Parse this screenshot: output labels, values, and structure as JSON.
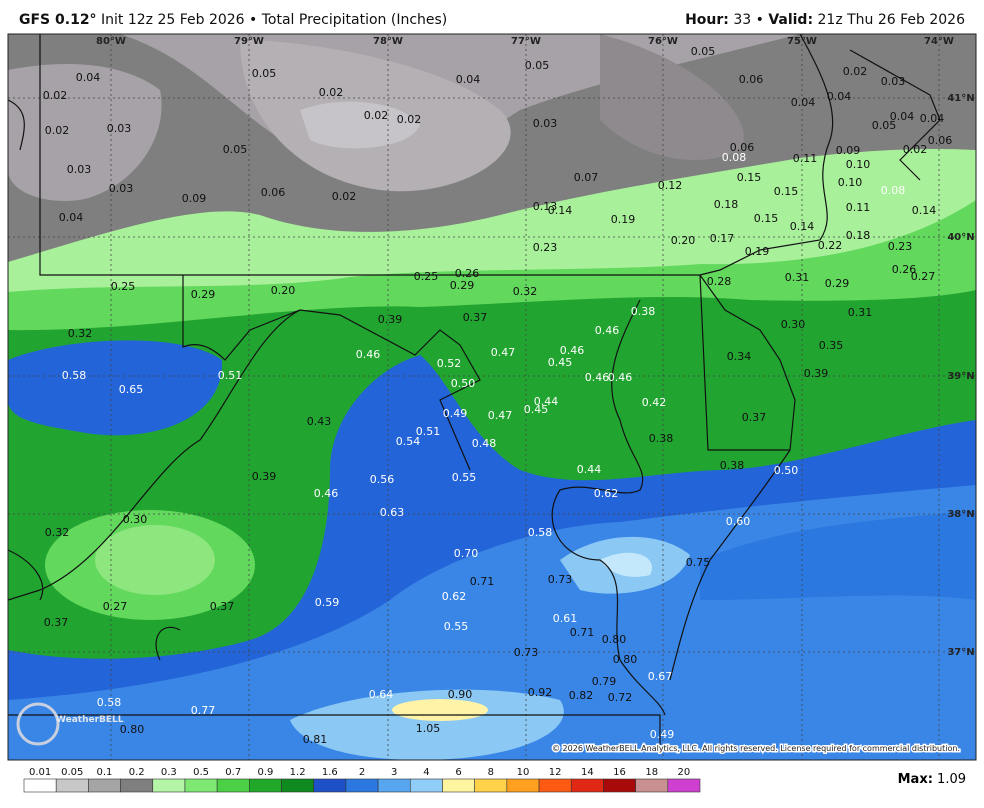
{
  "header": {
    "model": "GFS 0.12°",
    "title": "Init 12z 25 Feb 2026 • Total Precipitation (Inches)",
    "hour_label": "Hour:",
    "hour": "33 •",
    "valid_label": "Valid:",
    "valid": "21z Thu 26 Feb 2026"
  },
  "map": {
    "longitude_labels": [
      "80°W",
      "79°W",
      "78°W",
      "77°W",
      "76°W",
      "75°W",
      "74°W"
    ],
    "latitude_labels": [
      "41°N",
      "40°N",
      "39°N",
      "38°N",
      "37°N"
    ],
    "point_values": [
      "0.04",
      "0.02",
      "0.02",
      "0.03",
      "0.03",
      "0.03",
      "0.04",
      "0.05",
      "0.05",
      "0.09",
      "0.06",
      "0.02",
      "0.02",
      "0.02",
      "0.02",
      "0.04",
      "0.05",
      "0.03",
      "0.05",
      "0.06",
      "0.02",
      "0.03",
      "0.04",
      "0.04",
      "0.04",
      "0.04",
      "0.05",
      "0.02",
      "0.06",
      "0.06",
      "0.08",
      "0.11",
      "0.09",
      "0.10",
      "0.07",
      "0.12",
      "0.15",
      "0.10",
      "0.08",
      "0.15",
      "0.18",
      "0.15",
      "0.11",
      "0.14",
      "0.13",
      "0.14",
      "0.19",
      "0.14",
      "0.18",
      "0.20",
      "0.17",
      "0.23",
      "0.22",
      "0.23",
      "0.19",
      "0.26",
      "0.27",
      "0.25",
      "0.26",
      "0.29",
      "0.25",
      "0.29",
      "0.20",
      "0.32",
      "0.28",
      "0.31",
      "0.29",
      "0.39",
      "0.37",
      "0.38",
      "0.46",
      "0.30",
      "0.31",
      "0.32",
      "0.35",
      "0.46",
      "0.47",
      "0.46",
      "0.52",
      "0.45",
      "0.34",
      "0.58",
      "0.51",
      "0.50",
      "0.46",
      "0.46",
      "0.39",
      "0.65",
      "0.44",
      "0.42",
      "0.49",
      "0.47",
      "0.45",
      "0.37",
      "0.43",
      "0.51",
      "0.54",
      "0.48",
      "0.38",
      "0.38",
      "0.44",
      "0.50",
      "0.39",
      "0.56",
      "0.55",
      "0.62",
      "0.46",
      "0.63",
      "0.30",
      "0.60",
      "0.32",
      "0.58",
      "0.70",
      "0.75",
      "0.71",
      "0.73",
      "0.62",
      "0.59",
      "0.27",
      "0.37",
      "0.37",
      "0.55",
      "0.61",
      "0.71",
      "0.80",
      "0.73",
      "0.80",
      "0.67",
      "0.79",
      "0.64",
      "0.90",
      "0.92",
      "0.82",
      "0.72",
      "0.58",
      "0.77",
      "0.80",
      "1.05",
      "0.81",
      "0.49"
    ],
    "logo": "WeatherBELL",
    "copyright": "© 2026 WeatherBELL Analytics, LLC. All rights reserved. License required for commercial distribution."
  },
  "legend": {
    "labels": [
      "0.01",
      "0.05",
      "0.1",
      "0.2",
      "0.3",
      "0.5",
      "0.7",
      "0.9",
      "1.2",
      "1.6",
      "2",
      "3",
      "4",
      "6",
      "8",
      "10",
      "12",
      "14",
      "16",
      "18",
      "20"
    ],
    "colors": [
      "#ffffff",
      "#c8c8c8",
      "#a5a5a5",
      "#7f7f7f",
      "#b4f5a8",
      "#7ee873",
      "#4cd045",
      "#22a828",
      "#0e8a1e",
      "#1e50c8",
      "#2a78e0",
      "#58a6f0",
      "#90cdf8",
      "#fff5a0",
      "#ffd24a",
      "#ffa01e",
      "#ff5a14",
      "#e02814",
      "#a80a0a",
      "#c89090",
      "#d040d0"
    ],
    "max_label": "Max:",
    "max": "1.09"
  }
}
